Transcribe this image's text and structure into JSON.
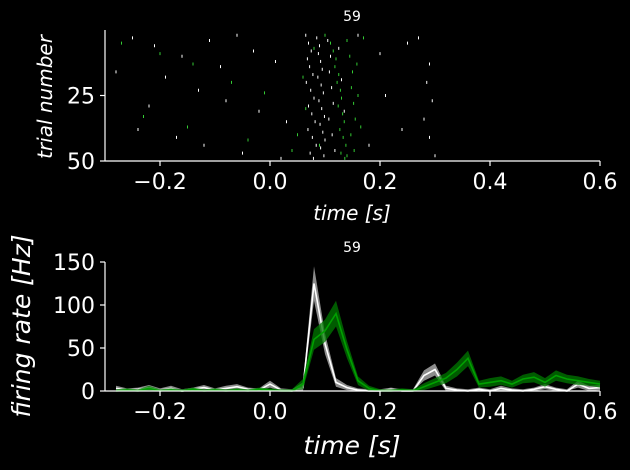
{
  "chart_data": [
    {
      "type": "scatter",
      "subtype": "raster",
      "title": "59",
      "xlabel": "time [s]",
      "ylabel": "trial number",
      "xlim": [
        -0.3,
        0.6
      ],
      "ylim": [
        50,
        0
      ],
      "xticks": [
        "−0.2",
        "0.0",
        "0.2",
        "0.4",
        "0.6"
      ],
      "xtick_values": [
        -0.2,
        0.0,
        0.2,
        0.4,
        0.6
      ],
      "yticks": [
        "25",
        "50"
      ],
      "ytick_values": [
        25,
        50
      ],
      "grid": false,
      "legend": "none",
      "series": [
        {
          "color": "#ffffff",
          "points": [
            [
              -0.25,
              3
            ],
            [
              -0.21,
              6
            ],
            [
              -0.16,
              10
            ],
            [
              -0.11,
              4
            ],
            [
              -0.06,
              2
            ],
            [
              -0.03,
              8
            ],
            [
              0.01,
              12
            ],
            [
              -0.28,
              16
            ],
            [
              -0.19,
              18
            ],
            [
              -0.13,
              23
            ],
            [
              -0.08,
              27
            ],
            [
              -0.02,
              31
            ],
            [
              0.03,
              35
            ],
            [
              -0.24,
              38
            ],
            [
              -0.17,
              41
            ],
            [
              -0.12,
              44
            ],
            [
              -0.05,
              47
            ],
            [
              0.02,
              49
            ],
            [
              -0.22,
              29
            ],
            [
              -0.09,
              14
            ],
            [
              0.065,
              2
            ],
            [
              0.07,
              5
            ],
            [
              0.075,
              8
            ],
            [
              0.068,
              11
            ],
            [
              0.072,
              14
            ],
            [
              0.078,
              17
            ],
            [
              0.066,
              20
            ],
            [
              0.074,
              23
            ],
            [
              0.08,
              26
            ],
            [
              0.07,
              29
            ],
            [
              0.076,
              32
            ],
            [
              0.082,
              35
            ],
            [
              0.069,
              38
            ],
            [
              0.077,
              41
            ],
            [
              0.084,
              44
            ],
            [
              0.073,
              47
            ],
            [
              0.079,
              49
            ],
            [
              0.085,
              3
            ],
            [
              0.09,
              6
            ],
            [
              0.088,
              9
            ],
            [
              0.092,
              12
            ],
            [
              0.095,
              15
            ],
            [
              0.087,
              18
            ],
            [
              0.093,
              21
            ],
            [
              0.097,
              24
            ],
            [
              0.089,
              27
            ],
            [
              0.094,
              30
            ],
            [
              0.099,
              33
            ],
            [
              0.091,
              36
            ],
            [
              0.096,
              39
            ],
            [
              0.1,
              42
            ],
            [
              0.092,
              45
            ],
            [
              0.098,
              48
            ],
            [
              0.105,
              4
            ],
            [
              0.11,
              10
            ],
            [
              0.108,
              16
            ],
            [
              0.112,
              22
            ],
            [
              0.115,
              28
            ],
            [
              0.107,
              34
            ],
            [
              0.113,
              40
            ],
            [
              0.118,
              46
            ],
            [
              0.125,
              7
            ],
            [
              0.13,
              19
            ],
            [
              0.135,
              31
            ],
            [
              0.16,
              2
            ],
            [
              0.2,
              9
            ],
            [
              0.25,
              5
            ],
            [
              0.29,
              13
            ],
            [
              0.285,
              20
            ],
            [
              0.295,
              27
            ],
            [
              0.28,
              34
            ],
            [
              0.29,
              41
            ],
            [
              0.3,
              48
            ],
            [
              0.27,
              3
            ],
            [
              0.24,
              38
            ],
            [
              0.18,
              44
            ],
            [
              0.21,
              25
            ]
          ]
        },
        {
          "color": "#33cc33",
          "points": [
            [
              -0.27,
              5
            ],
            [
              -0.2,
              9
            ],
            [
              -0.14,
              13
            ],
            [
              -0.07,
              20
            ],
            [
              -0.01,
              24
            ],
            [
              -0.23,
              33
            ],
            [
              -0.15,
              37
            ],
            [
              -0.04,
              42
            ],
            [
              0.04,
              46
            ],
            [
              0.1,
              2
            ],
            [
              0.11,
              5
            ],
            [
              0.115,
              8
            ],
            [
              0.12,
              11
            ],
            [
              0.118,
              14
            ],
            [
              0.125,
              17
            ],
            [
              0.122,
              20
            ],
            [
              0.128,
              23
            ],
            [
              0.13,
              26
            ],
            [
              0.124,
              29
            ],
            [
              0.132,
              32
            ],
            [
              0.135,
              35
            ],
            [
              0.127,
              38
            ],
            [
              0.133,
              41
            ],
            [
              0.138,
              44
            ],
            [
              0.129,
              47
            ],
            [
              0.136,
              49
            ],
            [
              0.14,
              4
            ],
            [
              0.145,
              10
            ],
            [
              0.15,
              16
            ],
            [
              0.148,
              22
            ],
            [
              0.152,
              28
            ],
            [
              0.155,
              34
            ],
            [
              0.147,
              40
            ],
            [
              0.153,
              46
            ],
            [
              0.158,
              13
            ],
            [
              0.16,
              25
            ],
            [
              0.165,
              37
            ],
            [
              0.06,
              18
            ],
            [
              0.065,
              30
            ],
            [
              0.05,
              40
            ],
            [
              0.09,
              44
            ],
            [
              0.14,
              48
            ],
            [
              0.17,
              3
            ],
            [
              0.08,
              7
            ]
          ]
        }
      ]
    },
    {
      "type": "line",
      "title": "59",
      "xlabel": "time [s]",
      "ylabel": "firing rate [Hz]",
      "xlim": [
        -0.3,
        0.6
      ],
      "ylim": [
        0,
        150
      ],
      "xticks": [
        "−0.2",
        "0.0",
        "0.2",
        "0.4",
        "0.6"
      ],
      "xtick_values": [
        -0.2,
        0.0,
        0.2,
        0.4,
        0.6
      ],
      "yticks": [
        "0",
        "50",
        "100",
        "150"
      ],
      "ytick_values": [
        0,
        50,
        100,
        150
      ],
      "grid": false,
      "legend": "none",
      "x": [
        -0.28,
        -0.26,
        -0.24,
        -0.22,
        -0.2,
        -0.18,
        -0.16,
        -0.14,
        -0.12,
        -0.1,
        -0.08,
        -0.06,
        -0.04,
        -0.02,
        0.0,
        0.02,
        0.04,
        0.06,
        0.08,
        0.1,
        0.12,
        0.14,
        0.16,
        0.18,
        0.2,
        0.22,
        0.24,
        0.26,
        0.28,
        0.3,
        0.32,
        0.34,
        0.36,
        0.38,
        0.4,
        0.42,
        0.44,
        0.46,
        0.48,
        0.5,
        0.52,
        0.54,
        0.56,
        0.58,
        0.6
      ],
      "series": [
        {
          "color": "#ffffff",
          "band_color": "#bbbbbb",
          "values": [
            3,
            1,
            2,
            4,
            1,
            3,
            0,
            2,
            4,
            1,
            3,
            5,
            2,
            1,
            8,
            1,
            0,
            4,
            125,
            55,
            10,
            4,
            1,
            0,
            0,
            2,
            0,
            0,
            18,
            25,
            3,
            1,
            0,
            2,
            0,
            3,
            1,
            0,
            2,
            5,
            2,
            0,
            8,
            3,
            4
          ],
          "err": [
            3,
            2,
            2,
            3,
            2,
            3,
            2,
            2,
            3,
            2,
            3,
            3,
            2,
            2,
            4,
            2,
            2,
            6,
            20,
            12,
            5,
            3,
            2,
            2,
            2,
            2,
            2,
            2,
            6,
            7,
            3,
            2,
            2,
            2,
            2,
            3,
            2,
            2,
            2,
            3,
            2,
            2,
            4,
            3,
            3
          ]
        },
        {
          "color": "#00a000",
          "band_color": "#007a00",
          "values": [
            0,
            1,
            0,
            3,
            0,
            1,
            0,
            2,
            0,
            1,
            0,
            1,
            0,
            2,
            1,
            0,
            0,
            8,
            60,
            70,
            90,
            48,
            12,
            3,
            0,
            0,
            1,
            0,
            5,
            10,
            15,
            25,
            38,
            8,
            10,
            12,
            8,
            14,
            16,
            10,
            18,
            14,
            12,
            10,
            8
          ],
          "err": [
            2,
            2,
            2,
            3,
            2,
            2,
            2,
            2,
            2,
            2,
            2,
            2,
            2,
            2,
            2,
            2,
            2,
            6,
            12,
            13,
            15,
            10,
            5,
            3,
            2,
            2,
            2,
            2,
            4,
            5,
            6,
            8,
            9,
            4,
            5,
            5,
            4,
            5,
            6,
            5,
            6,
            5,
            5,
            4,
            4
          ]
        }
      ]
    }
  ]
}
